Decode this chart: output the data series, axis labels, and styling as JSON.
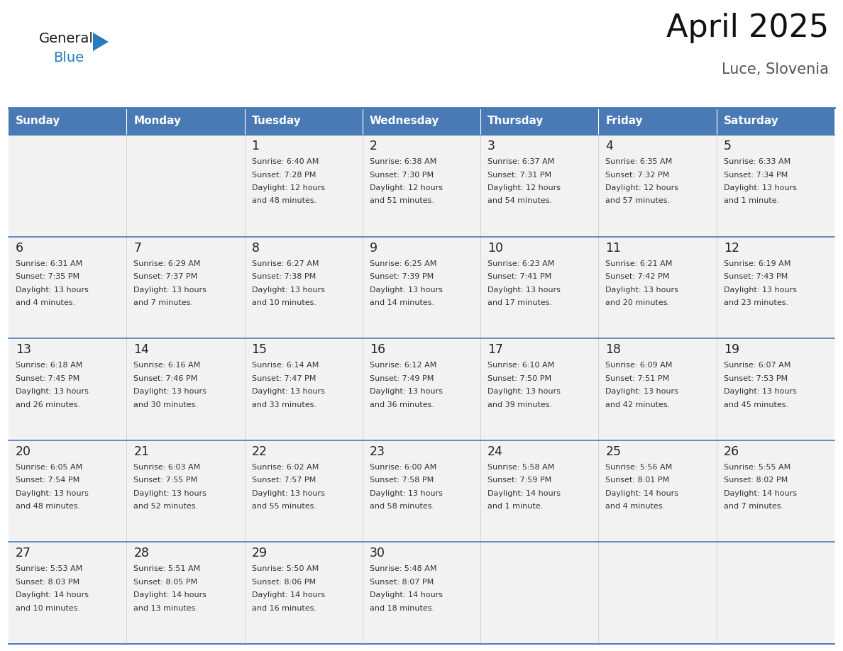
{
  "title": "April 2025",
  "subtitle": "Luce, Slovenia",
  "header_bg": "#4a7ab5",
  "header_text_color": "#ffffff",
  "cell_bg": "#f2f2f2",
  "cell_border_color": "#4a7ab5",
  "text_color": "#333333",
  "days_of_week": [
    "Sunday",
    "Monday",
    "Tuesday",
    "Wednesday",
    "Thursday",
    "Friday",
    "Saturday"
  ],
  "calendar": [
    [
      {
        "day": "",
        "sunrise": "",
        "sunset": "",
        "daylight": ""
      },
      {
        "day": "",
        "sunrise": "",
        "sunset": "",
        "daylight": ""
      },
      {
        "day": "1",
        "sunrise": "Sunrise: 6:40 AM",
        "sunset": "Sunset: 7:28 PM",
        "daylight": "Daylight: 12 hours\nand 48 minutes."
      },
      {
        "day": "2",
        "sunrise": "Sunrise: 6:38 AM",
        "sunset": "Sunset: 7:30 PM",
        "daylight": "Daylight: 12 hours\nand 51 minutes."
      },
      {
        "day": "3",
        "sunrise": "Sunrise: 6:37 AM",
        "sunset": "Sunset: 7:31 PM",
        "daylight": "Daylight: 12 hours\nand 54 minutes."
      },
      {
        "day": "4",
        "sunrise": "Sunrise: 6:35 AM",
        "sunset": "Sunset: 7:32 PM",
        "daylight": "Daylight: 12 hours\nand 57 minutes."
      },
      {
        "day": "5",
        "sunrise": "Sunrise: 6:33 AM",
        "sunset": "Sunset: 7:34 PM",
        "daylight": "Daylight: 13 hours\nand 1 minute."
      }
    ],
    [
      {
        "day": "6",
        "sunrise": "Sunrise: 6:31 AM",
        "sunset": "Sunset: 7:35 PM",
        "daylight": "Daylight: 13 hours\nand 4 minutes."
      },
      {
        "day": "7",
        "sunrise": "Sunrise: 6:29 AM",
        "sunset": "Sunset: 7:37 PM",
        "daylight": "Daylight: 13 hours\nand 7 minutes."
      },
      {
        "day": "8",
        "sunrise": "Sunrise: 6:27 AM",
        "sunset": "Sunset: 7:38 PM",
        "daylight": "Daylight: 13 hours\nand 10 minutes."
      },
      {
        "day": "9",
        "sunrise": "Sunrise: 6:25 AM",
        "sunset": "Sunset: 7:39 PM",
        "daylight": "Daylight: 13 hours\nand 14 minutes."
      },
      {
        "day": "10",
        "sunrise": "Sunrise: 6:23 AM",
        "sunset": "Sunset: 7:41 PM",
        "daylight": "Daylight: 13 hours\nand 17 minutes."
      },
      {
        "day": "11",
        "sunrise": "Sunrise: 6:21 AM",
        "sunset": "Sunset: 7:42 PM",
        "daylight": "Daylight: 13 hours\nand 20 minutes."
      },
      {
        "day": "12",
        "sunrise": "Sunrise: 6:19 AM",
        "sunset": "Sunset: 7:43 PM",
        "daylight": "Daylight: 13 hours\nand 23 minutes."
      }
    ],
    [
      {
        "day": "13",
        "sunrise": "Sunrise: 6:18 AM",
        "sunset": "Sunset: 7:45 PM",
        "daylight": "Daylight: 13 hours\nand 26 minutes."
      },
      {
        "day": "14",
        "sunrise": "Sunrise: 6:16 AM",
        "sunset": "Sunset: 7:46 PM",
        "daylight": "Daylight: 13 hours\nand 30 minutes."
      },
      {
        "day": "15",
        "sunrise": "Sunrise: 6:14 AM",
        "sunset": "Sunset: 7:47 PM",
        "daylight": "Daylight: 13 hours\nand 33 minutes."
      },
      {
        "day": "16",
        "sunrise": "Sunrise: 6:12 AM",
        "sunset": "Sunset: 7:49 PM",
        "daylight": "Daylight: 13 hours\nand 36 minutes."
      },
      {
        "day": "17",
        "sunrise": "Sunrise: 6:10 AM",
        "sunset": "Sunset: 7:50 PM",
        "daylight": "Daylight: 13 hours\nand 39 minutes."
      },
      {
        "day": "18",
        "sunrise": "Sunrise: 6:09 AM",
        "sunset": "Sunset: 7:51 PM",
        "daylight": "Daylight: 13 hours\nand 42 minutes."
      },
      {
        "day": "19",
        "sunrise": "Sunrise: 6:07 AM",
        "sunset": "Sunset: 7:53 PM",
        "daylight": "Daylight: 13 hours\nand 45 minutes."
      }
    ],
    [
      {
        "day": "20",
        "sunrise": "Sunrise: 6:05 AM",
        "sunset": "Sunset: 7:54 PM",
        "daylight": "Daylight: 13 hours\nand 48 minutes."
      },
      {
        "day": "21",
        "sunrise": "Sunrise: 6:03 AM",
        "sunset": "Sunset: 7:55 PM",
        "daylight": "Daylight: 13 hours\nand 52 minutes."
      },
      {
        "day": "22",
        "sunrise": "Sunrise: 6:02 AM",
        "sunset": "Sunset: 7:57 PM",
        "daylight": "Daylight: 13 hours\nand 55 minutes."
      },
      {
        "day": "23",
        "sunrise": "Sunrise: 6:00 AM",
        "sunset": "Sunset: 7:58 PM",
        "daylight": "Daylight: 13 hours\nand 58 minutes."
      },
      {
        "day": "24",
        "sunrise": "Sunrise: 5:58 AM",
        "sunset": "Sunset: 7:59 PM",
        "daylight": "Daylight: 14 hours\nand 1 minute."
      },
      {
        "day": "25",
        "sunrise": "Sunrise: 5:56 AM",
        "sunset": "Sunset: 8:01 PM",
        "daylight": "Daylight: 14 hours\nand 4 minutes."
      },
      {
        "day": "26",
        "sunrise": "Sunrise: 5:55 AM",
        "sunset": "Sunset: 8:02 PM",
        "daylight": "Daylight: 14 hours\nand 7 minutes."
      }
    ],
    [
      {
        "day": "27",
        "sunrise": "Sunrise: 5:53 AM",
        "sunset": "Sunset: 8:03 PM",
        "daylight": "Daylight: 14 hours\nand 10 minutes."
      },
      {
        "day": "28",
        "sunrise": "Sunrise: 5:51 AM",
        "sunset": "Sunset: 8:05 PM",
        "daylight": "Daylight: 14 hours\nand 13 minutes."
      },
      {
        "day": "29",
        "sunrise": "Sunrise: 5:50 AM",
        "sunset": "Sunset: 8:06 PM",
        "daylight": "Daylight: 14 hours\nand 16 minutes."
      },
      {
        "day": "30",
        "sunrise": "Sunrise: 5:48 AM",
        "sunset": "Sunset: 8:07 PM",
        "daylight": "Daylight: 14 hours\nand 18 minutes."
      },
      {
        "day": "",
        "sunrise": "",
        "sunset": "",
        "daylight": ""
      },
      {
        "day": "",
        "sunrise": "",
        "sunset": "",
        "daylight": ""
      },
      {
        "day": "",
        "sunrise": "",
        "sunset": "",
        "daylight": ""
      }
    ]
  ],
  "logo_color_general": "#1a1a1a",
  "logo_color_blue": "#2a7abf",
  "logo_triangle_color": "#2a7abf"
}
